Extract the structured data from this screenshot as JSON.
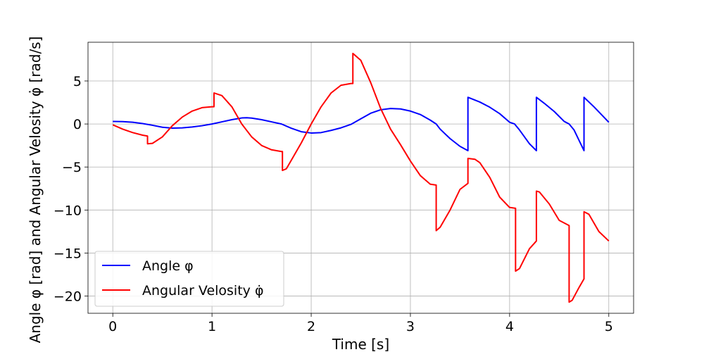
{
  "chart_data": {
    "type": "line",
    "xlabel": "Time  [s]",
    "ylabel": "Angle φ [rad] and Angular Velosity φ̇ [rad/s]",
    "xlim": [
      -0.25,
      5.25
    ],
    "ylim": [
      -22.0,
      9.5
    ],
    "x_ticks": [
      0,
      1,
      2,
      3,
      4,
      5
    ],
    "y_ticks": [
      5,
      0,
      -5,
      -10,
      -15,
      -20
    ],
    "x_tick_labels": [
      "0",
      "1",
      "2",
      "3",
      "4",
      "5"
    ],
    "y_tick_labels": [
      "5",
      "0",
      "−5",
      "−10",
      "−15",
      "−20"
    ],
    "grid": true,
    "legend_position": "lower-left",
    "series": [
      {
        "name": "Angle φ",
        "color": "#0000ff",
        "x": [
          0.0,
          0.1,
          0.2,
          0.3,
          0.4,
          0.5,
          0.6,
          0.7,
          0.8,
          0.9,
          1.0,
          1.1,
          1.2,
          1.3,
          1.35,
          1.4,
          1.5,
          1.6,
          1.7,
          1.8,
          1.9,
          2.0,
          2.1,
          2.2,
          2.3,
          2.4,
          2.5,
          2.6,
          2.7,
          2.8,
          2.9,
          3.0,
          3.1,
          3.2,
          3.26,
          3.3,
          3.4,
          3.5,
          3.58,
          3.58,
          3.7,
          3.8,
          3.9,
          4.0,
          4.05,
          4.1,
          4.2,
          4.27,
          4.27,
          4.35,
          4.45,
          4.55,
          4.6,
          4.65,
          4.75,
          4.75,
          4.85,
          4.95,
          5.0
        ],
        "y": [
          0.3,
          0.28,
          0.2,
          0.05,
          -0.15,
          -0.38,
          -0.48,
          -0.45,
          -0.35,
          -0.2,
          0.0,
          0.25,
          0.5,
          0.7,
          0.72,
          0.68,
          0.5,
          0.25,
          0.0,
          -0.5,
          -0.9,
          -1.05,
          -1.0,
          -0.75,
          -0.45,
          -0.05,
          0.6,
          1.25,
          1.65,
          1.8,
          1.75,
          1.5,
          1.1,
          0.45,
          0.0,
          -0.6,
          -1.7,
          -2.6,
          -3.1,
          3.1,
          2.55,
          1.95,
          1.2,
          0.2,
          0.0,
          -0.7,
          -2.3,
          -3.1,
          3.1,
          2.4,
          1.45,
          0.3,
          0.0,
          -0.7,
          -3.1,
          3.1,
          2.0,
          0.8,
          0.2
        ]
      },
      {
        "name": "Angular Velosity φ̇",
        "color": "#ff0000",
        "x": [
          0.0,
          0.1,
          0.2,
          0.3,
          0.35,
          0.35,
          0.4,
          0.5,
          0.6,
          0.7,
          0.8,
          0.9,
          1.0,
          1.02,
          1.02,
          1.1,
          1.2,
          1.3,
          1.4,
          1.5,
          1.6,
          1.7,
          1.71,
          1.71,
          1.75,
          1.8,
          1.9,
          2.0,
          2.1,
          2.2,
          2.3,
          2.4,
          2.42,
          2.42,
          2.5,
          2.6,
          2.7,
          2.8,
          2.9,
          3.0,
          3.1,
          3.2,
          3.26,
          3.26,
          3.3,
          3.4,
          3.5,
          3.58,
          3.58,
          3.65,
          3.7,
          3.8,
          3.9,
          4.0,
          4.06,
          4.06,
          4.1,
          4.2,
          4.27,
          4.27,
          4.3,
          4.4,
          4.5,
          4.6,
          4.6,
          4.63,
          4.7,
          4.75,
          4.75,
          4.8,
          4.9,
          5.0
        ],
        "y": [
          -0.1,
          -0.6,
          -1.0,
          -1.3,
          -1.4,
          -2.3,
          -2.25,
          -1.5,
          -0.2,
          0.8,
          1.5,
          1.9,
          2.0,
          2.0,
          3.6,
          3.3,
          2.0,
          0.0,
          -1.5,
          -2.5,
          -3.0,
          -3.2,
          -3.2,
          -5.4,
          -5.2,
          -4.2,
          -2.2,
          0.0,
          2.0,
          3.6,
          4.5,
          4.7,
          4.7,
          8.2,
          7.4,
          4.8,
          1.8,
          -0.6,
          -2.4,
          -4.3,
          -6.0,
          -7.0,
          -7.1,
          -12.4,
          -12.0,
          -10.0,
          -7.6,
          -6.9,
          -4.0,
          -4.1,
          -4.5,
          -6.2,
          -8.5,
          -9.7,
          -9.8,
          -17.1,
          -16.8,
          -14.5,
          -13.6,
          -7.8,
          -7.9,
          -9.3,
          -11.2,
          -11.8,
          -20.7,
          -20.5,
          -19.0,
          -18.0,
          -10.2,
          -10.5,
          -12.5,
          -13.6
        ]
      }
    ]
  }
}
